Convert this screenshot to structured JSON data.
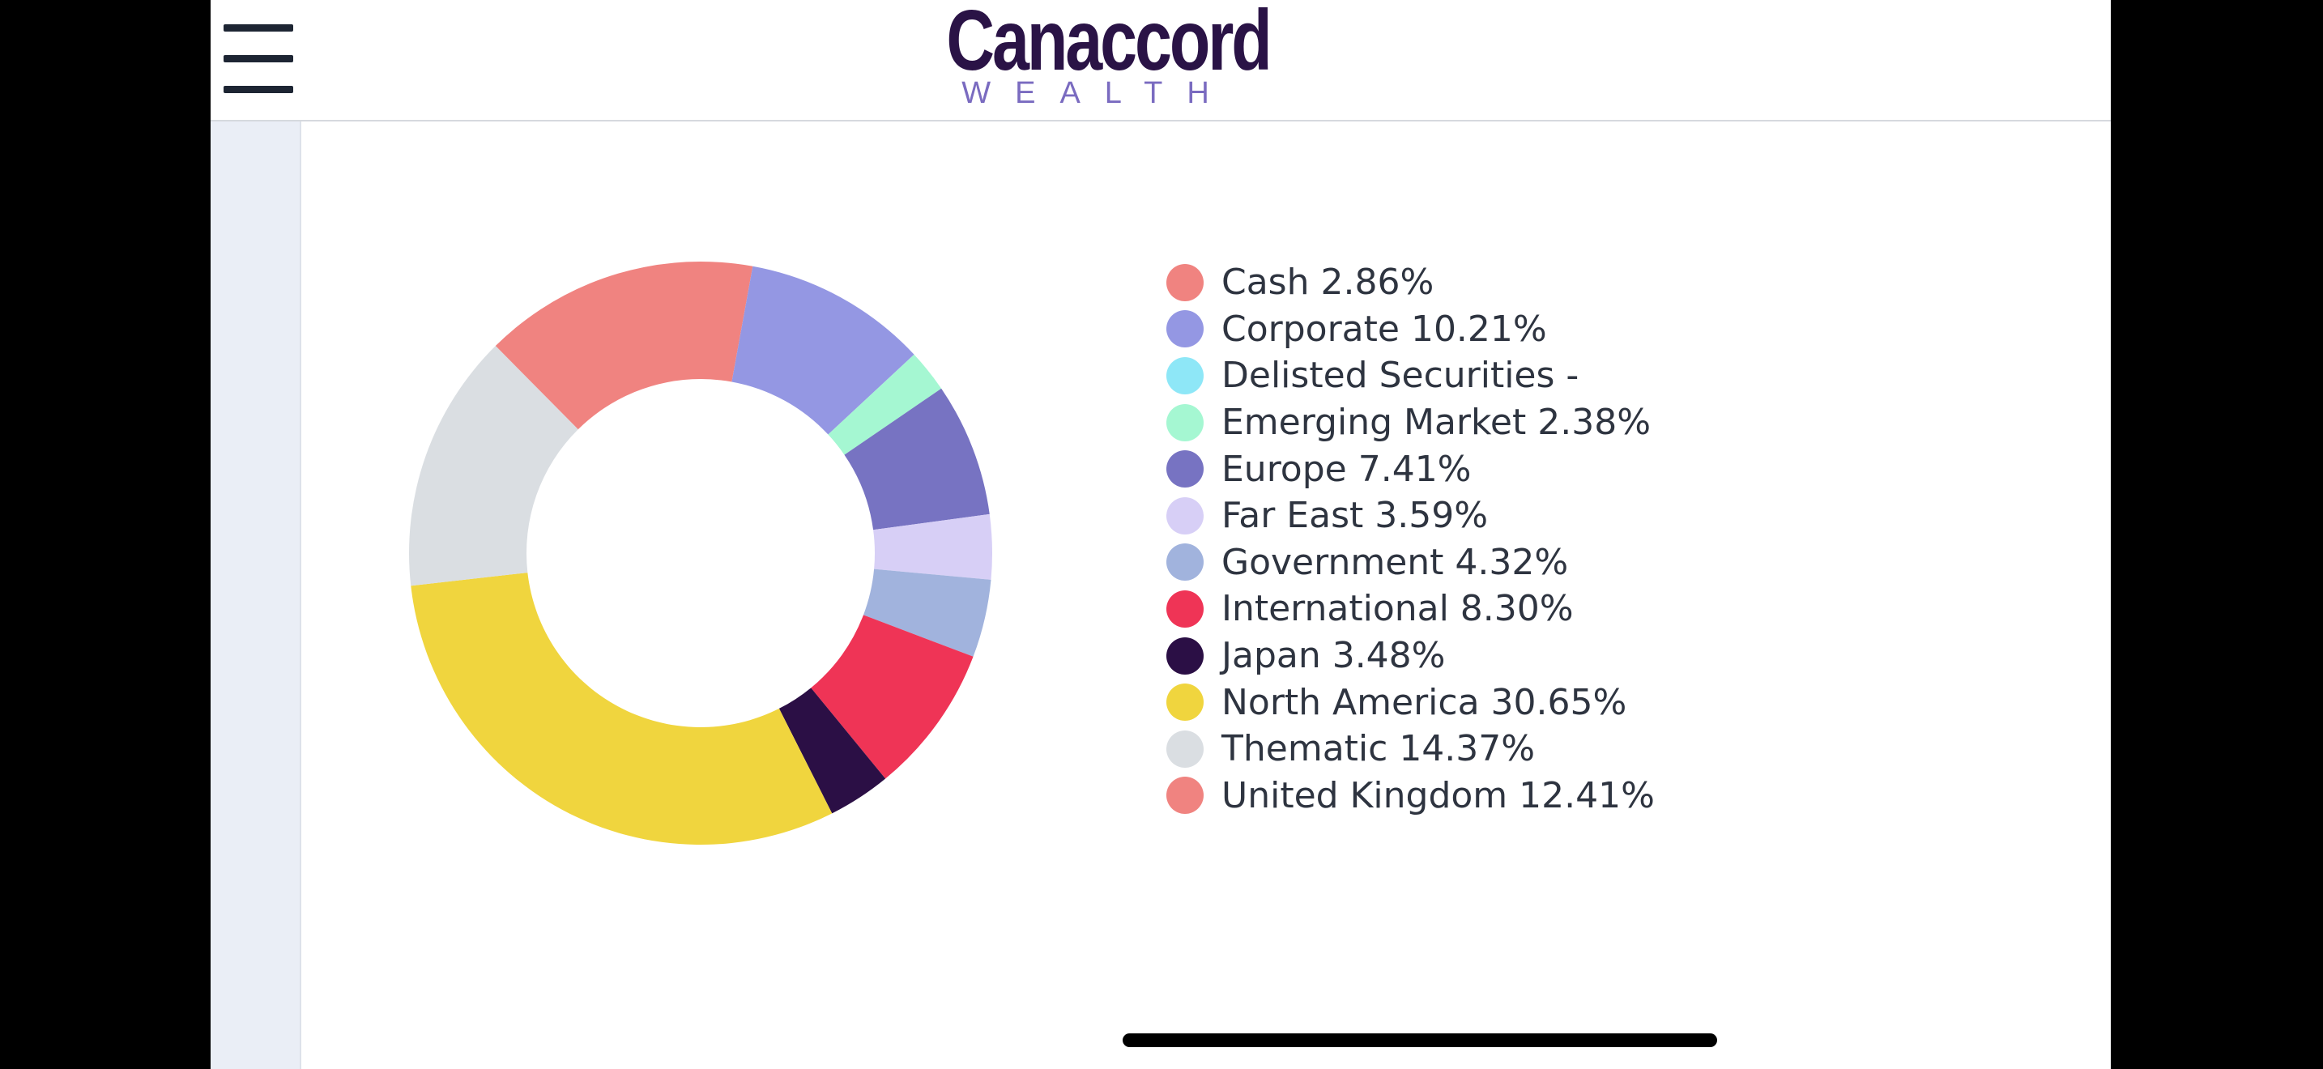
{
  "header": {
    "logo_name": "Canaccord",
    "logo_sub": "WEALTH",
    "menu_icon": "hamburger-menu-icon"
  },
  "colors": {
    "background": "#ffffff",
    "sidebar_strip": "#eaeef6",
    "header_border": "#d6d9de",
    "logo_primary": "#2a1346",
    "logo_secondary": "#7a6bc0"
  },
  "chart_data": {
    "type": "pie",
    "donut": true,
    "legend_position": "right",
    "categories": [
      "Cash",
      "Corporate",
      "Delisted Securities",
      "Emerging Market",
      "Europe",
      "Far East",
      "Government",
      "International",
      "Japan",
      "North America",
      "Thematic",
      "United Kingdom"
    ],
    "values": [
      2.86,
      10.21,
      0,
      2.38,
      7.41,
      3.59,
      4.32,
      8.3,
      3.48,
      30.65,
      14.37,
      12.41
    ],
    "colors": [
      "#f08380",
      "#9497e3",
      "#8ee7f7",
      "#a5f7d2",
      "#7773c2",
      "#d7cff6",
      "#a1b3dd",
      "#ef3456",
      "#2b0f45",
      "#f0d53e",
      "#dadee2",
      "#f08380"
    ],
    "legend_labels": [
      "Cash 2.86%",
      "Corporate 10.21%",
      "Delisted Securities -",
      "Emerging Market 2.38%",
      "Europe 7.41%",
      "Far East 3.59%",
      "Government 4.32%",
      "International 8.30%",
      "Japan 3.48%",
      "North America 30.65%",
      "Thematic 14.37%",
      "United Kingdom 12.41%"
    ]
  }
}
